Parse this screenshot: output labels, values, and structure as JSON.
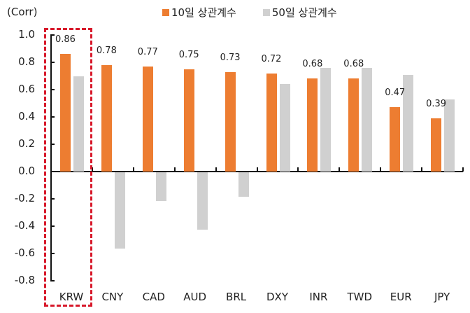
{
  "chart_data": {
    "type": "bar",
    "title": "",
    "unit_label": "(Corr)",
    "xlabel": "",
    "ylabel": "Corr",
    "ylim": [
      -0.8,
      1.0
    ],
    "yticks": [
      "1.0",
      "0.8",
      "0.6",
      "0.4",
      "0.2",
      "0.0",
      "-0.2",
      "-0.4",
      "-0.6",
      "-0.8"
    ],
    "legend_position": "top",
    "grid": false,
    "categories": [
      "KRW",
      "CNY",
      "CAD",
      "AUD",
      "BRL",
      "DXY",
      "INR",
      "TWD",
      "EUR",
      "JPY"
    ],
    "series": [
      {
        "name": "10일 상관계수",
        "color": "#ED7D31",
        "values": [
          0.86,
          0.78,
          0.77,
          0.75,
          0.73,
          0.72,
          0.68,
          0.68,
          0.47,
          0.39
        ],
        "data_labels": [
          "0.86",
          "0.78",
          "0.77",
          "0.75",
          "0.73",
          "0.72",
          "0.68",
          "0.68",
          "0.47",
          "0.39"
        ]
      },
      {
        "name": "50일 상관계수",
        "color": "#D0D0D0",
        "values": [
          0.7,
          -0.56,
          -0.21,
          -0.42,
          -0.18,
          0.64,
          0.76,
          0.76,
          0.71,
          0.53
        ]
      }
    ],
    "annotations": [
      {
        "type": "dashed-box",
        "target": "KRW",
        "color": "#D7182A"
      }
    ]
  },
  "legend": {
    "items": [
      {
        "label": "10일 상관계수",
        "color": "#ED7D31"
      },
      {
        "label": "50일 상관계수",
        "color": "#D0D0D0"
      }
    ]
  }
}
